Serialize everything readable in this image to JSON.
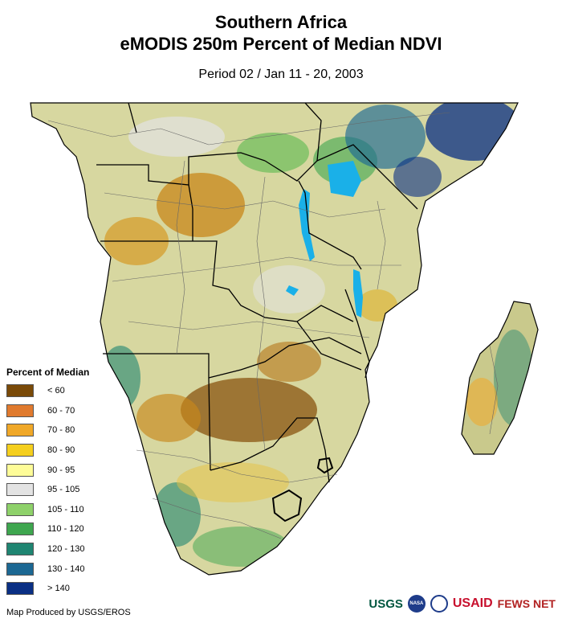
{
  "title": {
    "line1": "Southern Africa",
    "line2": "eMODIS 250m Percent of Median NDVI",
    "period": "Period 02 / Jan 11 - 20, 2003"
  },
  "legend": {
    "heading": "Percent of Median",
    "items": [
      {
        "label": "< 60",
        "color": "#7a4a08"
      },
      {
        "label": "60 - 70",
        "color": "#e07a2e"
      },
      {
        "label": "70 - 80",
        "color": "#f0a828"
      },
      {
        "label": "80 - 90",
        "color": "#f5cf1e"
      },
      {
        "label": "90 - 95",
        "color": "#fefc98"
      },
      {
        "label": "95 - 105",
        "color": "#e3e3e3"
      },
      {
        "label": "105 - 110",
        "color": "#8ed16a"
      },
      {
        "label": "110 - 120",
        "color": "#3ea64f"
      },
      {
        "label": "120 - 130",
        "color": "#1f8572"
      },
      {
        "label": "130 - 140",
        "color": "#1c6893"
      },
      {
        "label": "> 140",
        "color": "#0a2f84"
      }
    ]
  },
  "credit": "Map Produced by USGS/EROS",
  "logos": {
    "usgs": "USGS",
    "usaid_main": "USAID",
    "usaid_tag": "",
    "fews": "FEWS NET"
  }
}
